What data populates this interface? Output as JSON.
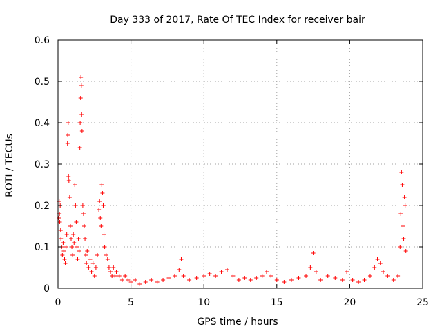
{
  "chart_data": {
    "type": "scatter",
    "title": "Day 333 of 2017, Rate Of TEC Index for receiver bair",
    "xlabel": "GPS time / hours",
    "ylabel": "ROTI / TECUs",
    "xlim": [
      0,
      25
    ],
    "ylim": [
      0,
      0.6
    ],
    "xticks": [
      0,
      5,
      10,
      15,
      20,
      25
    ],
    "yticks": [
      0,
      0.1,
      0.2,
      0.3,
      0.4,
      0.5,
      0.6
    ],
    "xtick_labels": [
      "0",
      "5",
      "10",
      "15",
      "20",
      "25"
    ],
    "ytick_labels": [
      "0",
      "0.1",
      "0.2",
      "0.3",
      "0.4",
      "0.5",
      "0.6"
    ],
    "grid": true,
    "marker": "+",
    "color": "#ff0000",
    "series": [
      {
        "name": "ROTI",
        "points": [
          [
            0.05,
            0.17
          ],
          [
            0.08,
            0.21
          ],
          [
            0.1,
            0.18
          ],
          [
            0.12,
            0.16
          ],
          [
            0.15,
            0.2
          ],
          [
            0.18,
            0.14
          ],
          [
            0.2,
            0.12
          ],
          [
            0.25,
            0.1
          ],
          [
            0.3,
            0.08
          ],
          [
            0.35,
            0.11
          ],
          [
            0.4,
            0.09
          ],
          [
            0.45,
            0.07
          ],
          [
            0.5,
            0.06
          ],
          [
            0.55,
            0.1
          ],
          [
            0.6,
            0.13
          ],
          [
            0.65,
            0.35
          ],
          [
            0.67,
            0.37
          ],
          [
            0.7,
            0.4
          ],
          [
            0.72,
            0.27
          ],
          [
            0.75,
            0.26
          ],
          [
            0.8,
            0.22
          ],
          [
            0.85,
            0.15
          ],
          [
            0.9,
            0.12
          ],
          [
            0.95,
            0.1
          ],
          [
            1.0,
            0.08
          ],
          [
            1.05,
            0.13
          ],
          [
            1.1,
            0.11
          ],
          [
            1.15,
            0.25
          ],
          [
            1.2,
            0.2
          ],
          [
            1.25,
            0.16
          ],
          [
            1.3,
            0.1
          ],
          [
            1.35,
            0.07
          ],
          [
            1.4,
            0.12
          ],
          [
            1.45,
            0.09
          ],
          [
            1.5,
            0.34
          ],
          [
            1.52,
            0.4
          ],
          [
            1.55,
            0.46
          ],
          [
            1.57,
            0.51
          ],
          [
            1.6,
            0.49
          ],
          [
            1.62,
            0.42
          ],
          [
            1.65,
            0.38
          ],
          [
            1.7,
            0.2
          ],
          [
            1.75,
            0.18
          ],
          [
            1.8,
            0.15
          ],
          [
            1.85,
            0.12
          ],
          [
            1.9,
            0.08
          ],
          [
            1.95,
            0.06
          ],
          [
            2.0,
            0.09
          ],
          [
            2.1,
            0.05
          ],
          [
            2.2,
            0.07
          ],
          [
            2.3,
            0.04
          ],
          [
            2.4,
            0.06
          ],
          [
            2.5,
            0.03
          ],
          [
            2.6,
            0.05
          ],
          [
            2.7,
            0.08
          ],
          [
            2.8,
            0.19
          ],
          [
            2.85,
            0.21
          ],
          [
            2.9,
            0.17
          ],
          [
            2.95,
            0.15
          ],
          [
            3.0,
            0.25
          ],
          [
            3.05,
            0.23
          ],
          [
            3.1,
            0.2
          ],
          [
            3.15,
            0.13
          ],
          [
            3.2,
            0.1
          ],
          [
            3.3,
            0.08
          ],
          [
            3.4,
            0.07
          ],
          [
            3.5,
            0.05
          ],
          [
            3.6,
            0.04
          ],
          [
            3.7,
            0.03
          ],
          [
            3.8,
            0.05
          ],
          [
            3.9,
            0.03
          ],
          [
            4.0,
            0.04
          ],
          [
            4.2,
            0.03
          ],
          [
            4.4,
            0.02
          ],
          [
            4.6,
            0.03
          ],
          [
            4.8,
            0.02
          ],
          [
            5.0,
            0.015
          ],
          [
            5.3,
            0.02
          ],
          [
            5.6,
            0.01
          ],
          [
            6.0,
            0.015
          ],
          [
            6.4,
            0.02
          ],
          [
            6.8,
            0.015
          ],
          [
            7.2,
            0.02
          ],
          [
            7.6,
            0.025
          ],
          [
            8.0,
            0.03
          ],
          [
            8.3,
            0.045
          ],
          [
            8.45,
            0.07
          ],
          [
            8.6,
            0.03
          ],
          [
            9.0,
            0.02
          ],
          [
            9.5,
            0.025
          ],
          [
            10.0,
            0.03
          ],
          [
            10.4,
            0.035
          ],
          [
            10.8,
            0.03
          ],
          [
            11.2,
            0.04
          ],
          [
            11.6,
            0.045
          ],
          [
            12.0,
            0.03
          ],
          [
            12.4,
            0.02
          ],
          [
            12.8,
            0.025
          ],
          [
            13.2,
            0.02
          ],
          [
            13.6,
            0.025
          ],
          [
            14.0,
            0.03
          ],
          [
            14.3,
            0.04
          ],
          [
            14.6,
            0.03
          ],
          [
            15.0,
            0.02
          ],
          [
            15.5,
            0.015
          ],
          [
            16.0,
            0.02
          ],
          [
            16.5,
            0.025
          ],
          [
            17.0,
            0.03
          ],
          [
            17.3,
            0.05
          ],
          [
            17.5,
            0.085
          ],
          [
            17.7,
            0.04
          ],
          [
            18.0,
            0.02
          ],
          [
            18.5,
            0.03
          ],
          [
            19.0,
            0.025
          ],
          [
            19.5,
            0.02
          ],
          [
            19.8,
            0.04
          ],
          [
            20.2,
            0.02
          ],
          [
            20.6,
            0.015
          ],
          [
            21.0,
            0.02
          ],
          [
            21.4,
            0.03
          ],
          [
            21.7,
            0.05
          ],
          [
            21.9,
            0.07
          ],
          [
            22.1,
            0.06
          ],
          [
            22.3,
            0.04
          ],
          [
            22.6,
            0.03
          ],
          [
            23.0,
            0.02
          ],
          [
            23.3,
            0.03
          ],
          [
            23.45,
            0.1
          ],
          [
            23.5,
            0.18
          ],
          [
            23.55,
            0.28
          ],
          [
            23.6,
            0.25
          ],
          [
            23.65,
            0.15
          ],
          [
            23.7,
            0.12
          ],
          [
            23.75,
            0.22
          ],
          [
            23.8,
            0.2
          ],
          [
            23.85,
            0.09
          ]
        ]
      }
    ]
  }
}
